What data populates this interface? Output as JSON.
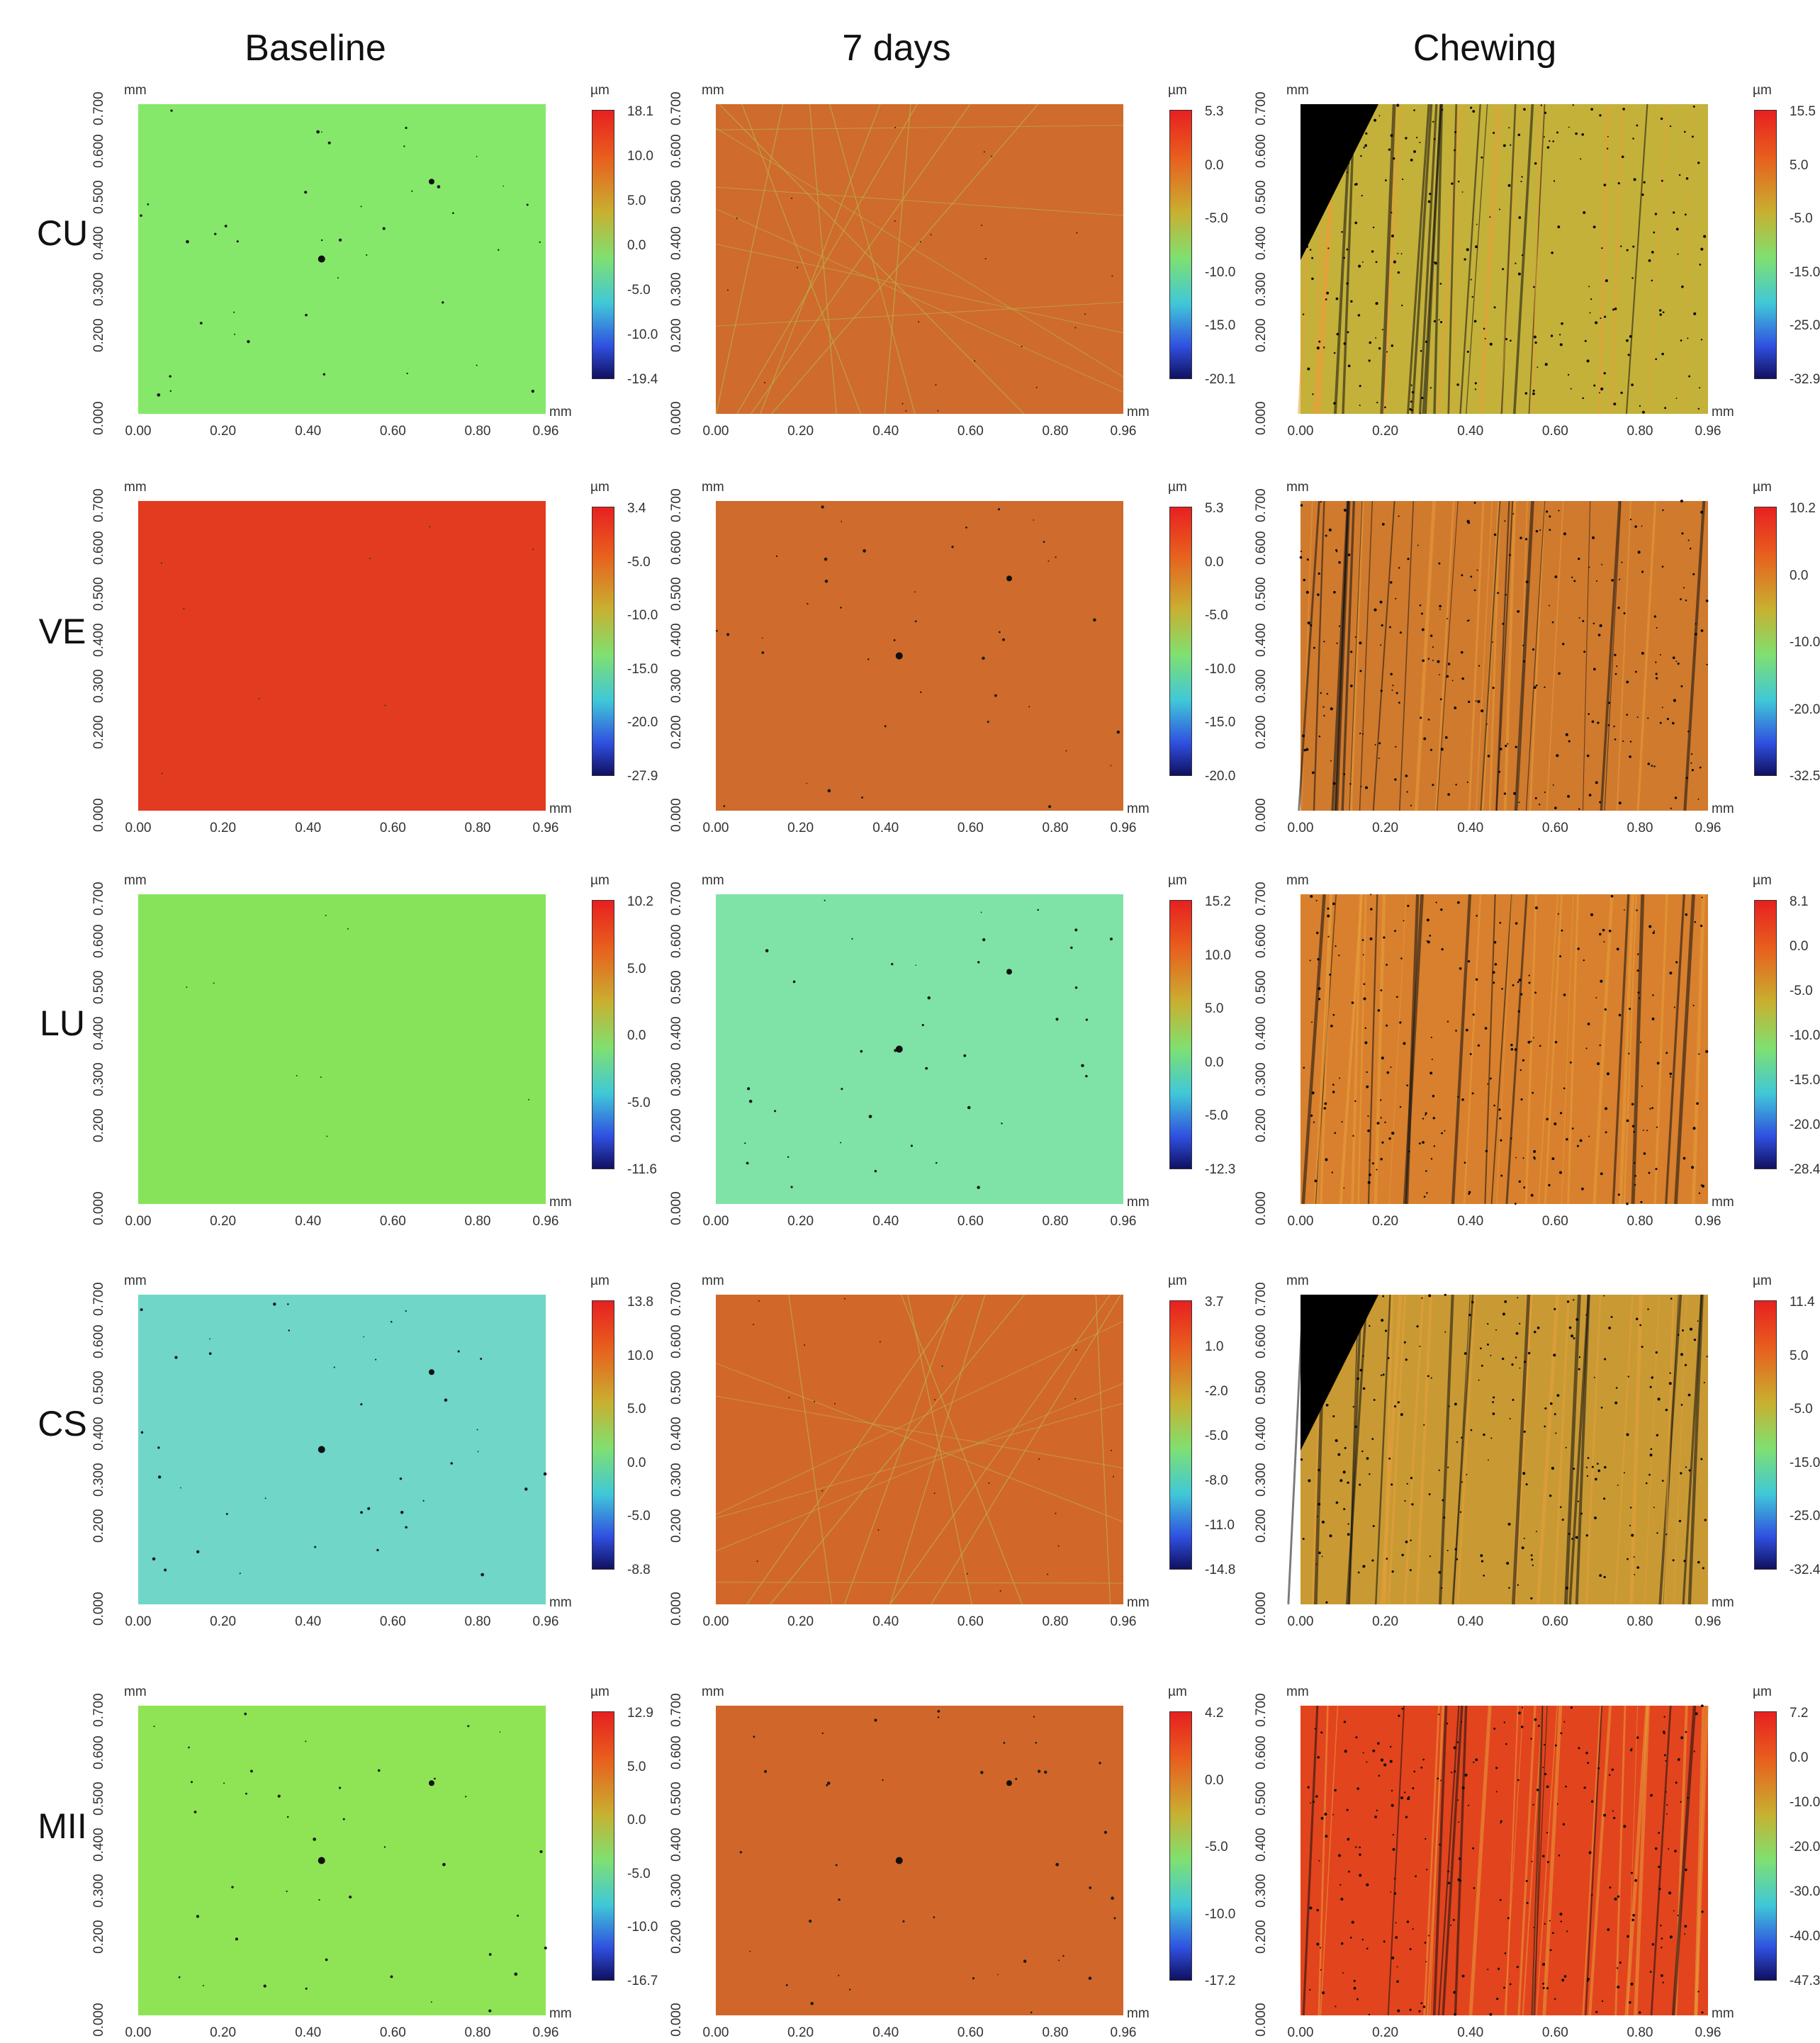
{
  "columns": [
    "Baseline",
    "7 days",
    "Chewing"
  ],
  "rows": [
    "CU",
    "VE",
    "LU",
    "CS",
    "MII"
  ],
  "units": {
    "axis": "mm",
    "height": "µm"
  },
  "x_ticks": [
    "0.00",
    "0.20",
    "0.40",
    "0.60",
    "0.80",
    "0.96"
  ],
  "y_ticks": [
    "0.000",
    "0.200",
    "0.300",
    "0.400",
    "0.500",
    "0.600",
    "0.700"
  ],
  "panels": [
    {
      "row": "CU",
      "col": "Baseline",
      "bg": "#86e86a",
      "style": "specks",
      "scale": [
        "18.1",
        "10.0",
        "5.0",
        "0.0",
        "-5.0",
        "-10.0",
        "-19.4"
      ]
    },
    {
      "row": "CU",
      "col": "7 days",
      "bg": "#cf6b2c",
      "style": "scratch",
      "scale": [
        "5.3",
        "0.0",
        "-5.0",
        "-10.0",
        "-15.0",
        "-20.1"
      ]
    },
    {
      "row": "CU",
      "col": "Chewing",
      "bg": "#c4b13a",
      "style": "wear-corner",
      "scale": [
        "15.5",
        "5.0",
        "-5.0",
        "-15.0",
        "-25.0",
        "-32.9"
      ]
    },
    {
      "row": "VE",
      "col": "Baseline",
      "bg": "#e23b1f",
      "style": "plain",
      "scale": [
        "3.4",
        "-5.0",
        "-10.0",
        "-15.0",
        "-20.0",
        "-27.9"
      ]
    },
    {
      "row": "VE",
      "col": "7 days",
      "bg": "#cf6b2c",
      "style": "specks",
      "scale": [
        "5.3",
        "0.0",
        "-5.0",
        "-10.0",
        "-15.0",
        "-20.0"
      ]
    },
    {
      "row": "VE",
      "col": "Chewing",
      "bg": "#d07a2e",
      "style": "wear",
      "scale": [
        "10.2",
        "0.0",
        "-10.0",
        "-20.0",
        "-32.5"
      ]
    },
    {
      "row": "LU",
      "col": "Baseline",
      "bg": "#86e35a",
      "style": "plain",
      "scale": [
        "10.2",
        "5.0",
        "0.0",
        "-5.0",
        "-11.6"
      ]
    },
    {
      "row": "LU",
      "col": "7 days",
      "bg": "#7fe3a8",
      "style": "specks",
      "scale": [
        "15.2",
        "10.0",
        "5.0",
        "0.0",
        "-5.0",
        "-12.3"
      ]
    },
    {
      "row": "LU",
      "col": "Chewing",
      "bg": "#d8802e",
      "style": "wear",
      "scale": [
        "8.1",
        "0.0",
        "-5.0",
        "-10.0",
        "-15.0",
        "-20.0",
        "-28.4"
      ]
    },
    {
      "row": "CS",
      "col": "Baseline",
      "bg": "#6fd6c8",
      "style": "specks",
      "scale": [
        "13.8",
        "10.0",
        "5.0",
        "0.0",
        "-5.0",
        "-8.8"
      ]
    },
    {
      "row": "CS",
      "col": "7 days",
      "bg": "#d2672a",
      "style": "scratch",
      "scale": [
        "3.7",
        "1.0",
        "-2.0",
        "-5.0",
        "-8.0",
        "-11.0",
        "-14.8"
      ]
    },
    {
      "row": "CS",
      "col": "Chewing",
      "bg": "#c99a34",
      "style": "wear-corner",
      "scale": [
        "11.4",
        "5.0",
        "-5.0",
        "-15.0",
        "-25.0",
        "-32.4"
      ]
    },
    {
      "row": "MII",
      "col": "Baseline",
      "bg": "#8ee454",
      "style": "specks",
      "scale": [
        "12.9",
        "5.0",
        "0.0",
        "-5.0",
        "-10.0",
        "-16.7"
      ]
    },
    {
      "row": "MII",
      "col": "7 days",
      "bg": "#d0662a",
      "style": "specks",
      "scale": [
        "4.2",
        "0.0",
        "-5.0",
        "-10.0",
        "-17.2"
      ]
    },
    {
      "row": "MII",
      "col": "Chewing",
      "bg": "#e2441e",
      "style": "wear",
      "scale": [
        "7.2",
        "0.0",
        "-10.0",
        "-20.0",
        "-30.0",
        "-40.0",
        "-47.3"
      ]
    }
  ]
}
